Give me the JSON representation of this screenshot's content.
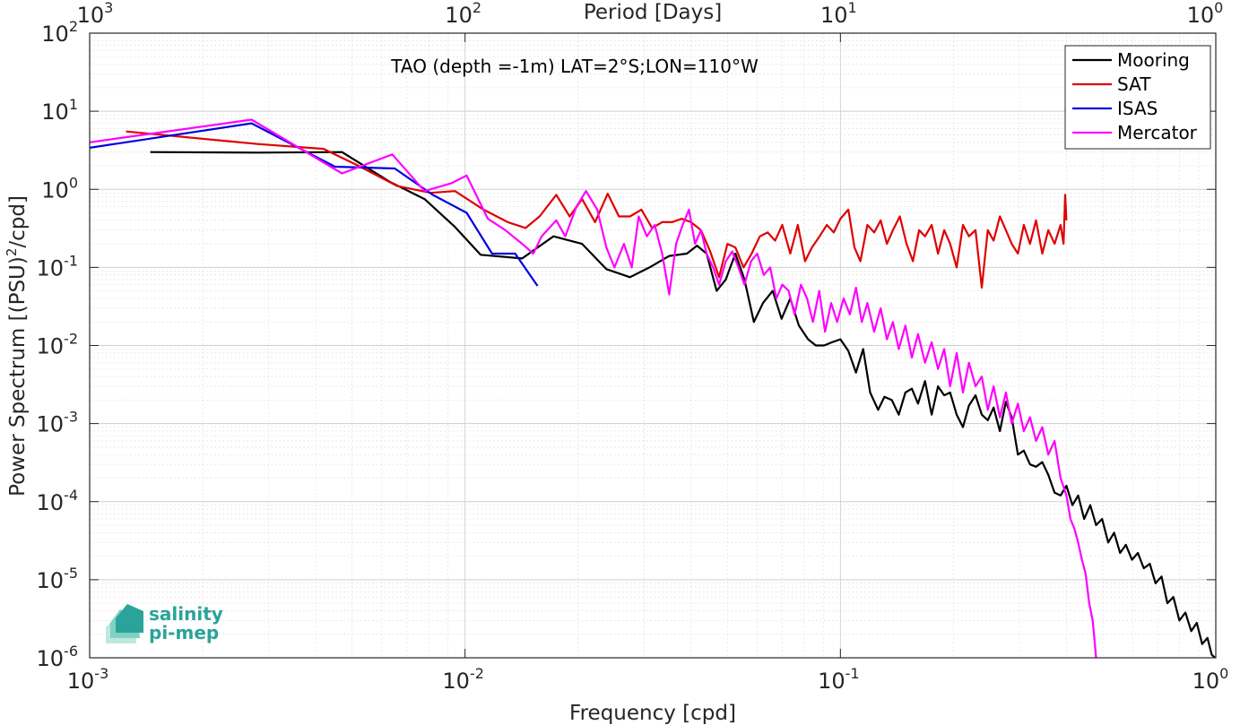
{
  "chart_data": {
    "type": "line",
    "annotation": "TAO (depth =-1m) LAT=2°S;LON=110°W",
    "xlabel": "Frequency [cpd]",
    "ylabel": "Power Spectrum [(PSU)^2/cpd]",
    "ylabel_parts": {
      "main": "Power Spectrum [(PSU)",
      "sup": "2",
      "tail": "/cpd]"
    },
    "top_xlabel": "Period [Days]",
    "xscale": "log",
    "yscale": "log",
    "xlim": [
      0.001,
      1
    ],
    "ylim": [
      1e-06,
      100
    ],
    "grid": true,
    "legend_position": "top-right",
    "x_ticks": [
      {
        "value": 0.001,
        "base": "10",
        "exp": "-3"
      },
      {
        "value": 0.01,
        "base": "10",
        "exp": "-2"
      },
      {
        "value": 0.1,
        "base": "10",
        "exp": "-1"
      },
      {
        "value": 1,
        "base": "10",
        "exp": "0"
      }
    ],
    "y_ticks": [
      {
        "value": 1e-06,
        "base": "10",
        "exp": "-6"
      },
      {
        "value": 1e-05,
        "base": "10",
        "exp": "-5"
      },
      {
        "value": 0.0001,
        "base": "10",
        "exp": "-4"
      },
      {
        "value": 0.001,
        "base": "10",
        "exp": "-3"
      },
      {
        "value": 0.01,
        "base": "10",
        "exp": "-2"
      },
      {
        "value": 0.1,
        "base": "10",
        "exp": "-1"
      },
      {
        "value": 1,
        "base": "10",
        "exp": "0"
      },
      {
        "value": 10,
        "base": "10",
        "exp": "1"
      },
      {
        "value": 100,
        "base": "10",
        "exp": "2"
      }
    ],
    "top_ticks": [
      {
        "value": 0.001,
        "base": "10",
        "exp": "3"
      },
      {
        "value": 0.01,
        "base": "10",
        "exp": "2"
      },
      {
        "value": 0.1,
        "base": "10",
        "exp": "1"
      },
      {
        "value": 1,
        "base": "10",
        "exp": "0"
      }
    ],
    "series": [
      {
        "name": "Mooring",
        "color": "#000000",
        "points": [
          [
            0.00145,
            3.0
          ],
          [
            0.0028,
            2.95
          ],
          [
            0.0047,
            3.0
          ],
          [
            0.0063,
            1.25
          ],
          [
            0.0078,
            0.75
          ],
          [
            0.0094,
            0.33
          ],
          [
            0.011,
            0.145
          ],
          [
            0.0142,
            0.13
          ],
          [
            0.0172,
            0.25
          ],
          [
            0.0205,
            0.2
          ],
          [
            0.0238,
            0.095
          ],
          [
            0.0275,
            0.075
          ],
          [
            0.031,
            0.1
          ],
          [
            0.035,
            0.14
          ],
          [
            0.039,
            0.15
          ],
          [
            0.0415,
            0.19
          ],
          [
            0.044,
            0.15
          ],
          [
            0.0468,
            0.05
          ],
          [
            0.0495,
            0.07
          ],
          [
            0.0525,
            0.15
          ],
          [
            0.0555,
            0.07
          ],
          [
            0.0588,
            0.02
          ],
          [
            0.0622,
            0.035
          ],
          [
            0.066,
            0.05
          ],
          [
            0.0697,
            0.022
          ],
          [
            0.0735,
            0.04
          ],
          [
            0.0775,
            0.018
          ],
          [
            0.082,
            0.012
          ],
          [
            0.086,
            0.01
          ],
          [
            0.0905,
            0.01
          ],
          [
            0.095,
            0.011
          ],
          [
            0.1,
            0.012
          ],
          [
            0.105,
            0.0085
          ],
          [
            0.11,
            0.0045
          ],
          [
            0.115,
            0.009
          ],
          [
            0.12,
            0.0025
          ],
          [
            0.126,
            0.0015
          ],
          [
            0.131,
            0.0022
          ],
          [
            0.137,
            0.002
          ],
          [
            0.143,
            0.0013
          ],
          [
            0.149,
            0.0025
          ],
          [
            0.155,
            0.0028
          ],
          [
            0.161,
            0.0018
          ],
          [
            0.168,
            0.0035
          ],
          [
            0.175,
            0.0013
          ],
          [
            0.182,
            0.003
          ],
          [
            0.189,
            0.0023
          ],
          [
            0.196,
            0.0025
          ],
          [
            0.204,
            0.0013
          ],
          [
            0.212,
            0.0009
          ],
          [
            0.22,
            0.0017
          ],
          [
            0.229,
            0.0023
          ],
          [
            0.238,
            0.0013
          ],
          [
            0.247,
            0.0011
          ],
          [
            0.256,
            0.0016
          ],
          [
            0.266,
            0.0008
          ],
          [
            0.276,
            0.0019
          ],
          [
            0.286,
            0.0012
          ],
          [
            0.297,
            0.0004
          ],
          [
            0.308,
            0.00045
          ],
          [
            0.32,
            0.0003
          ],
          [
            0.332,
            0.00028
          ],
          [
            0.345,
            0.00032
          ],
          [
            0.358,
            0.00022
          ],
          [
            0.372,
            0.00013
          ],
          [
            0.386,
            0.00012
          ],
          [
            0.4,
            0.00016
          ],
          [
            0.415,
            9e-05
          ],
          [
            0.43,
            0.00012
          ],
          [
            0.446,
            6e-05
          ],
          [
            0.463,
            9e-05
          ],
          [
            0.48,
            5e-05
          ],
          [
            0.498,
            6e-05
          ],
          [
            0.517,
            3e-05
          ],
          [
            0.536,
            4e-05
          ],
          [
            0.556,
            2.2e-05
          ],
          [
            0.576,
            2.8e-05
          ],
          [
            0.598,
            1.8e-05
          ],
          [
            0.62,
            2.2e-05
          ],
          [
            0.643,
            1.4e-05
          ],
          [
            0.667,
            1.6e-05
          ],
          [
            0.691,
            9e-06
          ],
          [
            0.717,
            1.1e-05
          ],
          [
            0.743,
            5e-06
          ],
          [
            0.771,
            6e-06
          ],
          [
            0.8,
            3e-06
          ],
          [
            0.83,
            3.8e-06
          ],
          [
            0.86,
            2.2e-06
          ],
          [
            0.89,
            2.8e-06
          ],
          [
            0.92,
            1.5e-06
          ],
          [
            0.95,
            1.8e-06
          ],
          [
            0.975,
            1.1e-06
          ],
          [
            0.995,
            1e-06
          ]
        ]
      },
      {
        "name": "SAT",
        "color": "#e00000",
        "points": [
          [
            0.00125,
            5.5
          ],
          [
            0.0028,
            3.8
          ],
          [
            0.0042,
            3.3
          ],
          [
            0.0052,
            2.0
          ],
          [
            0.0066,
            1.1
          ],
          [
            0.0081,
            0.9
          ],
          [
            0.0094,
            0.95
          ],
          [
            0.0112,
            0.55
          ],
          [
            0.013,
            0.38
          ],
          [
            0.0145,
            0.32
          ],
          [
            0.0158,
            0.45
          ],
          [
            0.0175,
            0.85
          ],
          [
            0.019,
            0.45
          ],
          [
            0.0205,
            0.75
          ],
          [
            0.0222,
            0.38
          ],
          [
            0.024,
            0.88
          ],
          [
            0.0257,
            0.45
          ],
          [
            0.0275,
            0.45
          ],
          [
            0.0295,
            0.55
          ],
          [
            0.0315,
            0.32
          ],
          [
            0.0335,
            0.38
          ],
          [
            0.0356,
            0.38
          ],
          [
            0.0378,
            0.42
          ],
          [
            0.04,
            0.38
          ],
          [
            0.0425,
            0.3
          ],
          [
            0.045,
            0.16
          ],
          [
            0.0475,
            0.075
          ],
          [
            0.05,
            0.2
          ],
          [
            0.0525,
            0.18
          ],
          [
            0.0552,
            0.1
          ],
          [
            0.058,
            0.15
          ],
          [
            0.061,
            0.25
          ],
          [
            0.064,
            0.28
          ],
          [
            0.067,
            0.22
          ],
          [
            0.07,
            0.35
          ],
          [
            0.0735,
            0.15
          ],
          [
            0.077,
            0.35
          ],
          [
            0.0805,
            0.12
          ],
          [
            0.084,
            0.18
          ],
          [
            0.088,
            0.25
          ],
          [
            0.092,
            0.35
          ],
          [
            0.096,
            0.28
          ],
          [
            0.1,
            0.42
          ],
          [
            0.105,
            0.55
          ],
          [
            0.109,
            0.18
          ],
          [
            0.113,
            0.12
          ],
          [
            0.118,
            0.35
          ],
          [
            0.123,
            0.28
          ],
          [
            0.128,
            0.4
          ],
          [
            0.133,
            0.2
          ],
          [
            0.138,
            0.3
          ],
          [
            0.144,
            0.45
          ],
          [
            0.15,
            0.2
          ],
          [
            0.156,
            0.12
          ],
          [
            0.162,
            0.3
          ],
          [
            0.168,
            0.25
          ],
          [
            0.175,
            0.35
          ],
          [
            0.182,
            0.15
          ],
          [
            0.189,
            0.3
          ],
          [
            0.196,
            0.2
          ],
          [
            0.204,
            0.1
          ],
          [
            0.212,
            0.35
          ],
          [
            0.22,
            0.25
          ],
          [
            0.229,
            0.3
          ],
          [
            0.238,
            0.055
          ],
          [
            0.247,
            0.3
          ],
          [
            0.256,
            0.22
          ],
          [
            0.266,
            0.45
          ],
          [
            0.276,
            0.3
          ],
          [
            0.286,
            0.2
          ],
          [
            0.297,
            0.15
          ],
          [
            0.308,
            0.35
          ],
          [
            0.32,
            0.2
          ],
          [
            0.332,
            0.4
          ],
          [
            0.345,
            0.15
          ],
          [
            0.358,
            0.3
          ],
          [
            0.372,
            0.2
          ],
          [
            0.386,
            0.35
          ],
          [
            0.393,
            0.2
          ],
          [
            0.397,
            0.85
          ],
          [
            0.4,
            0.4
          ]
        ]
      },
      {
        "name": "ISAS",
        "color": "#0000e0",
        "points": [
          [
            0.001,
            3.4
          ],
          [
            0.0027,
            7.0
          ],
          [
            0.0045,
            1.95
          ],
          [
            0.0065,
            1.85
          ],
          [
            0.0082,
            0.85
          ],
          [
            0.0101,
            0.5
          ],
          [
            0.0118,
            0.15
          ],
          [
            0.0136,
            0.15
          ],
          [
            0.0156,
            0.058
          ]
        ]
      },
      {
        "name": "Mercator",
        "color": "#ff00ff",
        "points": [
          [
            0.001,
            4.0
          ],
          [
            0.0027,
            7.8
          ],
          [
            0.0047,
            1.6
          ],
          [
            0.0064,
            2.8
          ],
          [
            0.0078,
            0.95
          ],
          [
            0.0092,
            1.2
          ],
          [
            0.0101,
            1.5
          ],
          [
            0.0115,
            0.42
          ],
          [
            0.0128,
            0.3
          ],
          [
            0.0142,
            0.2
          ],
          [
            0.0152,
            0.15
          ],
          [
            0.016,
            0.25
          ],
          [
            0.0175,
            0.4
          ],
          [
            0.0185,
            0.25
          ],
          [
            0.0198,
            0.6
          ],
          [
            0.021,
            0.95
          ],
          [
            0.0225,
            0.55
          ],
          [
            0.0238,
            0.18
          ],
          [
            0.025,
            0.1
          ],
          [
            0.0265,
            0.2
          ],
          [
            0.0278,
            0.1
          ],
          [
            0.029,
            0.45
          ],
          [
            0.0305,
            0.25
          ],
          [
            0.032,
            0.35
          ],
          [
            0.0335,
            0.15
          ],
          [
            0.035,
            0.045
          ],
          [
            0.0365,
            0.2
          ],
          [
            0.038,
            0.35
          ],
          [
            0.0395,
            0.55
          ],
          [
            0.041,
            0.2
          ],
          [
            0.0425,
            0.3
          ],
          [
            0.044,
            0.15
          ],
          [
            0.0458,
            0.1
          ],
          [
            0.0475,
            0.06
          ],
          [
            0.0495,
            0.12
          ],
          [
            0.0515,
            0.16
          ],
          [
            0.0535,
            0.1
          ],
          [
            0.0555,
            0.06
          ],
          [
            0.0578,
            0.12
          ],
          [
            0.06,
            0.15
          ],
          [
            0.0625,
            0.08
          ],
          [
            0.065,
            0.1
          ],
          [
            0.0675,
            0.04
          ],
          [
            0.07,
            0.06
          ],
          [
            0.0728,
            0.05
          ],
          [
            0.0755,
            0.025
          ],
          [
            0.0785,
            0.06
          ],
          [
            0.0815,
            0.04
          ],
          [
            0.0845,
            0.02
          ],
          [
            0.0878,
            0.05
          ],
          [
            0.091,
            0.015
          ],
          [
            0.0945,
            0.035
          ],
          [
            0.098,
            0.02
          ],
          [
            0.102,
            0.04
          ],
          [
            0.106,
            0.025
          ],
          [
            0.11,
            0.055
          ],
          [
            0.114,
            0.02
          ],
          [
            0.118,
            0.035
          ],
          [
            0.123,
            0.015
          ],
          [
            0.128,
            0.03
          ],
          [
            0.133,
            0.012
          ],
          [
            0.138,
            0.02
          ],
          [
            0.143,
            0.009
          ],
          [
            0.149,
            0.018
          ],
          [
            0.155,
            0.007
          ],
          [
            0.161,
            0.014
          ],
          [
            0.168,
            0.006
          ],
          [
            0.175,
            0.011
          ],
          [
            0.182,
            0.005
          ],
          [
            0.189,
            0.009
          ],
          [
            0.196,
            0.003
          ],
          [
            0.204,
            0.008
          ],
          [
            0.212,
            0.0025
          ],
          [
            0.22,
            0.006
          ],
          [
            0.229,
            0.003
          ],
          [
            0.238,
            0.004
          ],
          [
            0.247,
            0.0015
          ],
          [
            0.256,
            0.003
          ],
          [
            0.266,
            0.0012
          ],
          [
            0.276,
            0.0025
          ],
          [
            0.286,
            0.001
          ],
          [
            0.297,
            0.0018
          ],
          [
            0.308,
            0.0008
          ],
          [
            0.32,
            0.0012
          ],
          [
            0.332,
            0.0006
          ],
          [
            0.345,
            0.0009
          ],
          [
            0.358,
            0.0004
          ],
          [
            0.372,
            0.0006
          ],
          [
            0.386,
            0.0002
          ],
          [
            0.4,
            0.00012
          ],
          [
            0.41,
            6e-05
          ],
          [
            0.42,
            4.5e-05
          ],
          [
            0.43,
            3e-05
          ],
          [
            0.44,
            1.8e-05
          ],
          [
            0.45,
            1.2e-05
          ],
          [
            0.46,
            5e-06
          ],
          [
            0.47,
            3e-06
          ],
          [
            0.48,
            1e-06
          ]
        ]
      }
    ]
  },
  "logo": {
    "line1": "salinity",
    "line2": "pi-mep"
  }
}
